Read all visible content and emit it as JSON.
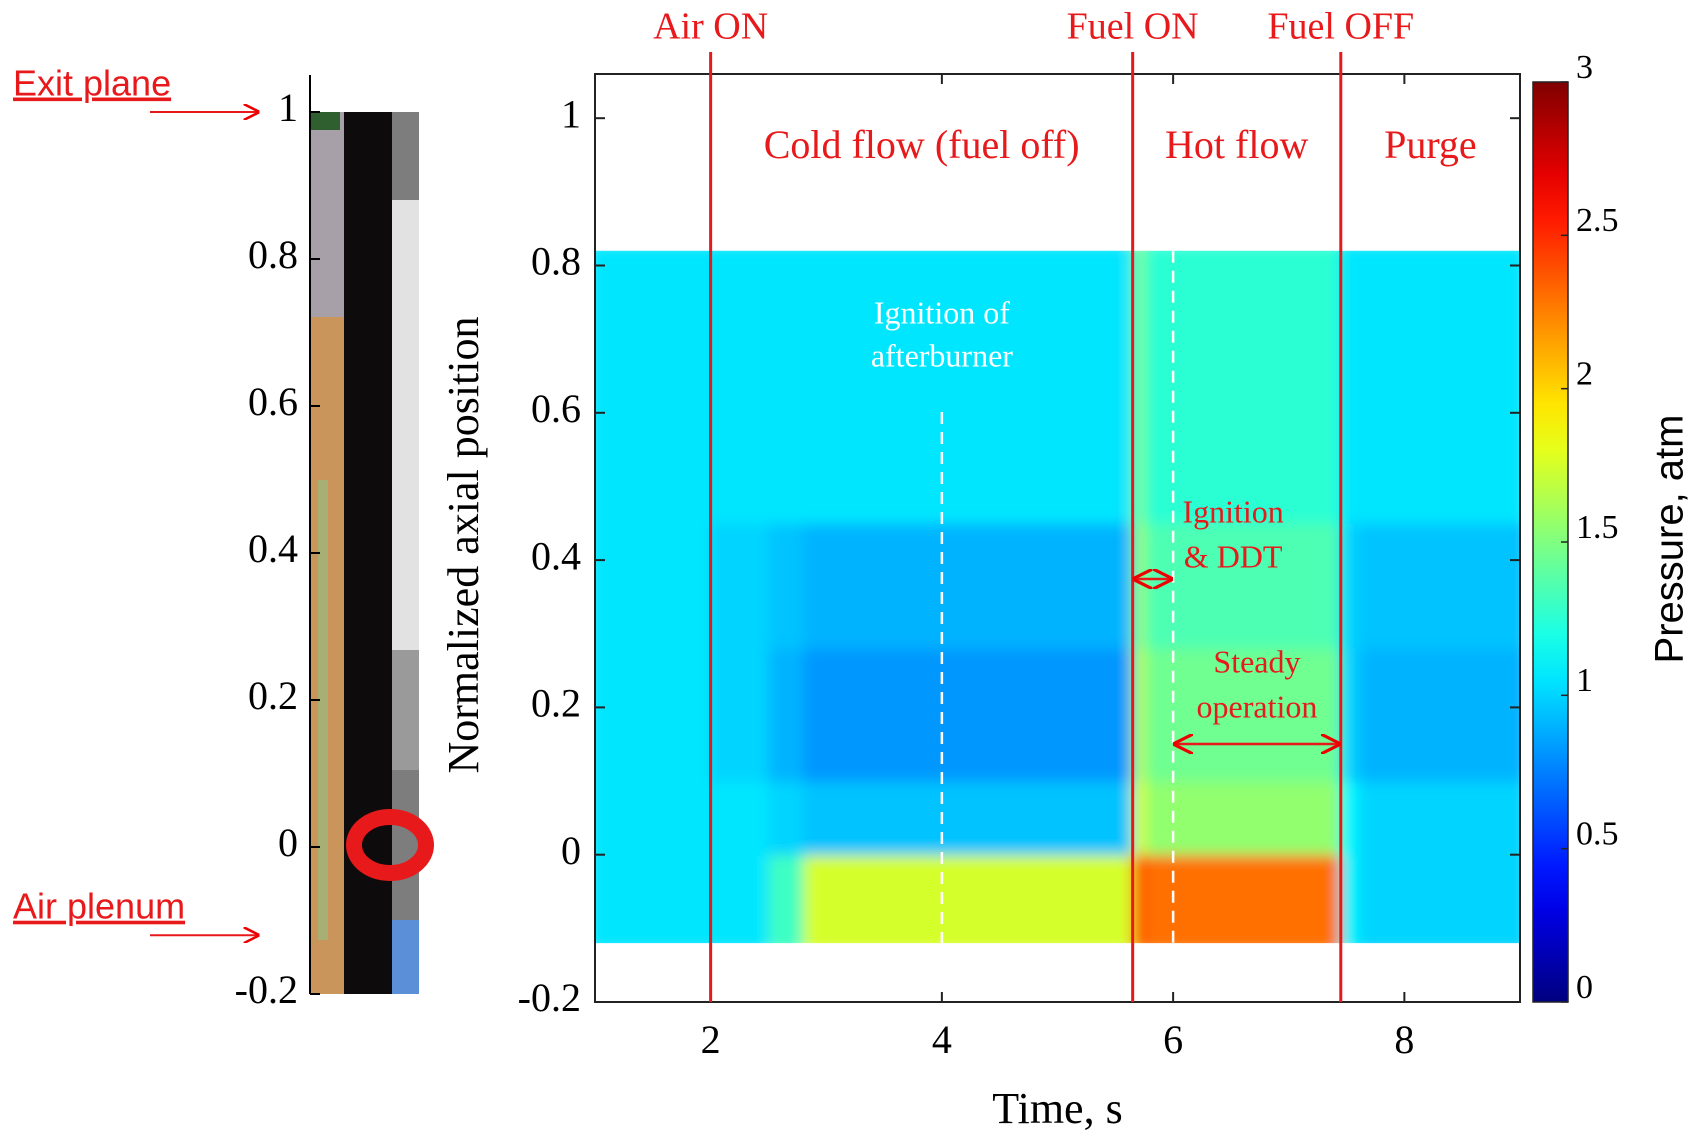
{
  "chart_data": [
    {
      "type": "strip",
      "ylim": [
        -0.2,
        1
      ],
      "yticks": [
        -0.2,
        0,
        0.2,
        0.4,
        0.6,
        0.8,
        1
      ],
      "annotations": [
        {
          "label": "Exit plane",
          "y": 1
        },
        {
          "label": "Air plenum",
          "y": -0.12
        }
      ]
    },
    {
      "type": "heatmap",
      "xlabel": "Time, s",
      "ylabel": "Normalized axial position",
      "xlim": [
        1,
        9
      ],
      "xticks": [
        2,
        4,
        6,
        8
      ],
      "ylim": [
        -0.2,
        1.06
      ],
      "yticks": [
        -0.2,
        0,
        0.2,
        0.4,
        0.6,
        0.8,
        1
      ],
      "x_edges": [
        1,
        2,
        2.5,
        2.8,
        5.65,
        5.75,
        7.45,
        7.6,
        9
      ],
      "y_edges": [
        -0.12,
        0,
        0.1,
        0.28,
        0.45,
        0.82
      ],
      "values": [
        [
          1.05,
          1.05,
          1.3,
          1.75,
          2.4,
          2.3,
          1.1,
          1.0
        ],
        [
          1.05,
          1.05,
          1.0,
          0.95,
          1.8,
          1.55,
          1.1,
          1.0
        ],
        [
          1.05,
          1.0,
          0.9,
          0.82,
          1.7,
          1.45,
          1.0,
          0.9
        ],
        [
          1.05,
          1.0,
          0.95,
          0.9,
          1.6,
          1.35,
          1.0,
          0.95
        ],
        [
          1.05,
          1.05,
          1.05,
          1.05,
          1.5,
          1.25,
          1.05,
          1.05
        ]
      ],
      "colormap": "jet",
      "colorbar": {
        "label": "Pressure, atm",
        "clim": [
          0,
          3
        ],
        "ticks": [
          0,
          0.5,
          1,
          1.5,
          2,
          2.5,
          3
        ]
      },
      "events": [
        {
          "label": "Air ON",
          "x": 2
        },
        {
          "label": "Fuel ON",
          "x": 5.65
        },
        {
          "label": "Fuel OFF",
          "x": 7.45
        }
      ],
      "phases": [
        "Cold flow (fuel off)",
        "Hot flow",
        "Purge"
      ],
      "dashed_lines": [
        {
          "x": 4,
          "label": [
            "Ignition of",
            "afterburner"
          ]
        },
        {
          "x": 6
        }
      ],
      "intervals": [
        {
          "label": [
            "Ignition",
            "& DDT"
          ],
          "x": [
            5.65,
            6
          ]
        },
        {
          "label": [
            "Steady",
            "operation"
          ],
          "x": [
            6,
            7.45
          ]
        }
      ]
    }
  ]
}
